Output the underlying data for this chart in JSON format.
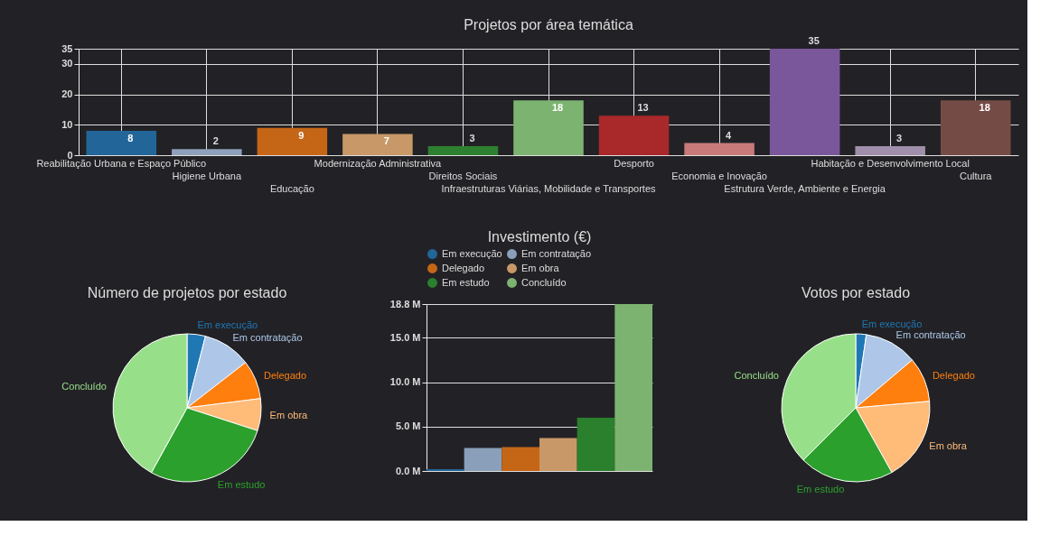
{
  "chart_data": [
    {
      "type": "bar",
      "title": "Projetos por área temática",
      "categories": [
        "Reabilitação Urbana e Espaço Público",
        "Higiene Urbana",
        "Educação",
        "Modernização Administrativa",
        "Direitos Sociais",
        "Infraestruturas Viárias, Mobilidade e Transportes",
        "Desporto",
        "Economia e Inovação",
        "Estrutura Verde, Ambiente e Energia",
        "Habitação e Desenvolvimento Local",
        "Cultura"
      ],
      "values": [
        8,
        2,
        9,
        7,
        3,
        18,
        13,
        4,
        35,
        3,
        18
      ],
      "colors": [
        "#226699",
        "#8fa0bb",
        "#c56617",
        "#c89868",
        "#2d8030",
        "#7db370",
        "#a9282a",
        "#c87a7a",
        "#7a579a",
        "#a08fab",
        "#744c45"
      ],
      "ylim": [
        0,
        35
      ],
      "yticks": [
        0,
        10,
        20,
        30,
        35
      ],
      "grid": true,
      "data_labels": true
    },
    {
      "type": "pie",
      "title": "Número de projetos por estado",
      "categories": [
        "Em execução",
        "Em contratação",
        "Delegado",
        "Em obra",
        "Em estudo",
        "Concluído"
      ],
      "values": [
        4,
        10.5,
        8.5,
        7,
        28,
        42
      ],
      "colors": [
        "#1f77b4",
        "#aec7e8",
        "#ff7f0e",
        "#ffbb78",
        "#2ca02c",
        "#98df8a"
      ]
    },
    {
      "type": "bar",
      "title": "Investimento (€)",
      "categories": [
        null
      ],
      "series": [
        {
          "name": "Em execução",
          "color": "#226699",
          "values": [
            0.2
          ]
        },
        {
          "name": "Em contratação",
          "color": "#8a9fb9",
          "values": [
            2.6
          ]
        },
        {
          "name": "Delegado",
          "color": "#c56617",
          "values": [
            2.7
          ]
        },
        {
          "name": "Em obra",
          "color": "#c89868",
          "values": [
            3.7
          ]
        },
        {
          "name": "Em estudo",
          "color": "#2a802c",
          "values": [
            6.0
          ]
        },
        {
          "name": "Concluído",
          "color": "#7db370",
          "values": [
            18.8
          ]
        }
      ],
      "ylim": [
        0,
        18.8
      ],
      "yticks": [
        {
          "value": 0,
          "label": "0.0 M"
        },
        {
          "value": 5,
          "label": "5.0 M"
        },
        {
          "value": 10,
          "label": "10.0 M"
        },
        {
          "value": 15,
          "label": "15.0 M"
        },
        {
          "value": 18.8,
          "label": "18.8 M"
        }
      ],
      "grid": "y",
      "legend": "top",
      "tick_labels": "y"
    },
    {
      "type": "pie",
      "title": "Votos por estado",
      "categories": [
        "Em execução",
        "Em contratação",
        "Delegado",
        "Em obra",
        "Em estudo",
        "Concluído"
      ],
      "values": [
        2.3,
        11.5,
        9.8,
        18.3,
        20.6,
        37.5
      ],
      "colors": [
        "#1f77b4",
        "#aec7e8",
        "#ff7f0e",
        "#ffbb78",
        "#2ca02c",
        "#98df8a"
      ]
    }
  ]
}
